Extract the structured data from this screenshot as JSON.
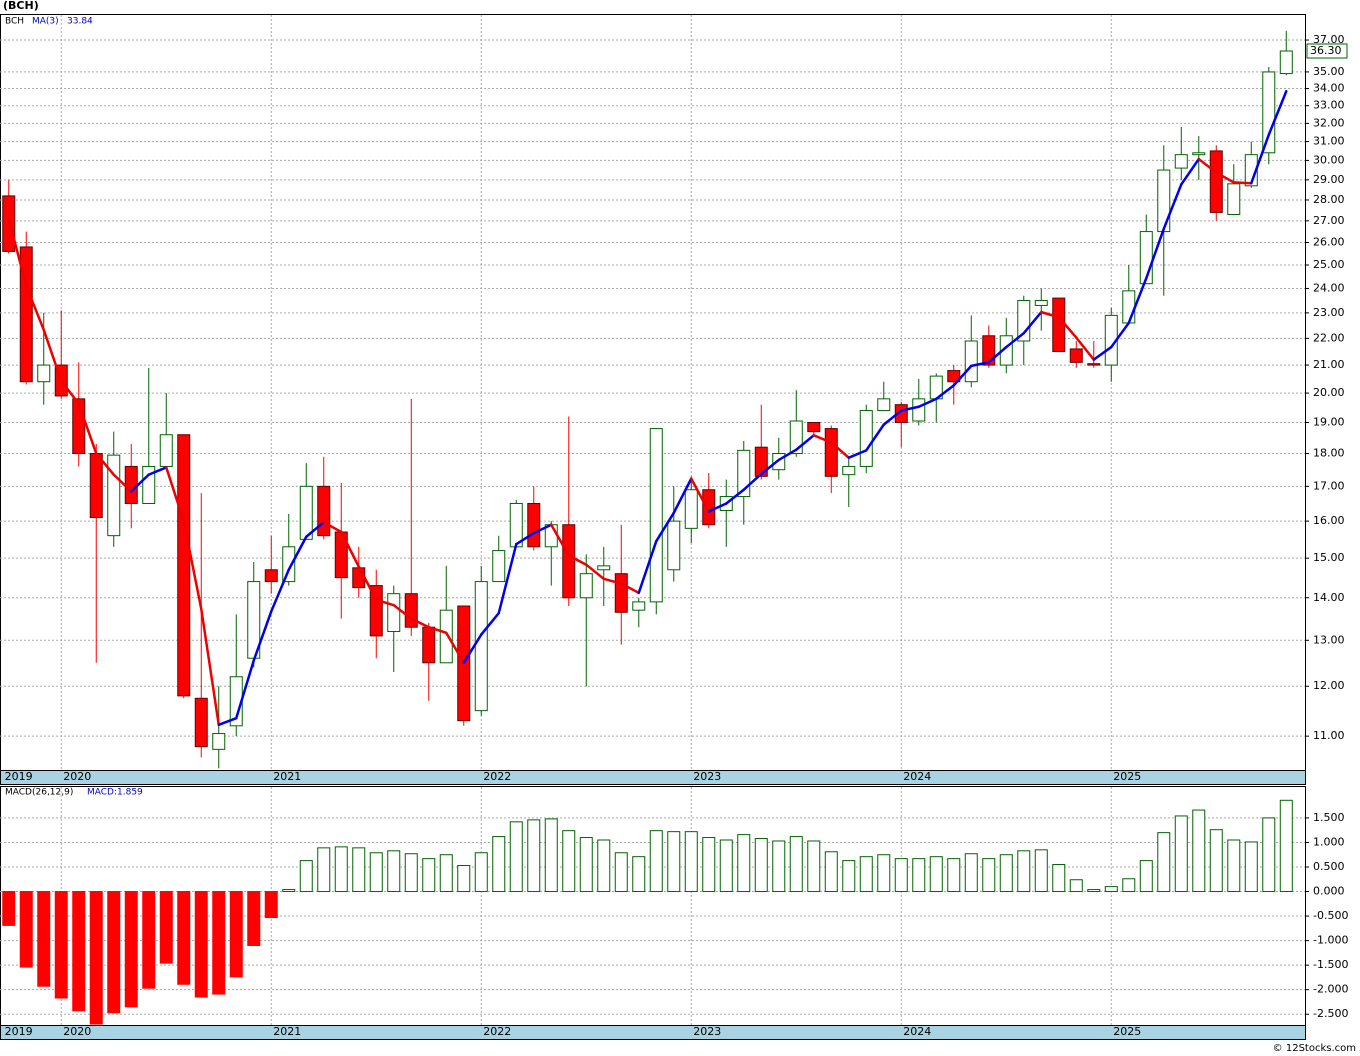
{
  "chart_data": {
    "type": "candlestick",
    "title": "(BCH)",
    "log_scale": true,
    "grid": true,
    "xlim": [
      -0.5,
      74.07
    ],
    "xticks": [
      {
        "value": -0.35,
        "label": "2019"
      },
      {
        "value": 3,
        "label": "2020"
      },
      {
        "value": 15,
        "label": "2021"
      },
      {
        "value": 27,
        "label": "2022"
      },
      {
        "value": 39,
        "label": "2023"
      },
      {
        "value": 51,
        "label": "2024"
      },
      {
        "value": 63,
        "label": "2025"
      }
    ],
    "ylim": [
      10.37,
      38.65
    ],
    "yticks": [
      {
        "value": 11,
        "label": "11.00"
      },
      {
        "value": 12,
        "label": "12.00"
      },
      {
        "value": 13,
        "label": "13.00"
      },
      {
        "value": 14,
        "label": "14.00"
      },
      {
        "value": 15,
        "label": "15.00"
      },
      {
        "value": 16,
        "label": "16.00"
      },
      {
        "value": 17,
        "label": "17.00"
      },
      {
        "value": 18,
        "label": "18.00"
      },
      {
        "value": 19,
        "label": "19.00"
      },
      {
        "value": 20,
        "label": "20.00"
      },
      {
        "value": 21,
        "label": "21.00"
      },
      {
        "value": 22,
        "label": "22.00"
      },
      {
        "value": 23,
        "label": "23.00"
      },
      {
        "value": 24,
        "label": "24.00"
      },
      {
        "value": 25,
        "label": "25.00"
      },
      {
        "value": 26,
        "label": "26.00"
      },
      {
        "value": 27,
        "label": "27.00"
      },
      {
        "value": 28,
        "label": "28.00"
      },
      {
        "value": 29,
        "label": "29.00"
      },
      {
        "value": 30,
        "label": "30.00"
      },
      {
        "value": 31,
        "label": "31.00"
      },
      {
        "value": 32,
        "label": "32.00"
      },
      {
        "value": 33,
        "label": "33.00"
      },
      {
        "value": 34,
        "label": "34.00"
      },
      {
        "value": 35,
        "label": "35.00"
      },
      {
        "value": 37,
        "label": "37.00"
      }
    ],
    "series": [
      {
        "name": "BCH",
        "type": "candlestick",
        "up_color": "#006400",
        "down_color": "#ff0000",
        "open": [
          28.2,
          25.8,
          20.4,
          21.0,
          19.8,
          18.0,
          15.6,
          17.6,
          16.5,
          17.6,
          18.6,
          11.75,
          10.75,
          11.2,
          12.6,
          14.7,
          14.4,
          15.5,
          17.0,
          15.7,
          14.75,
          14.3,
          13.2,
          14.1,
          13.3,
          12.5,
          13.8,
          11.5,
          14.4,
          15.3,
          16.5,
          15.3,
          15.9,
          14.0,
          14.7,
          14.6,
          13.7,
          13.9,
          14.7,
          15.8,
          16.9,
          16.3,
          16.7,
          18.2,
          17.5,
          18.0,
          19.0,
          18.8,
          17.35,
          17.6,
          19.4,
          19.6,
          19.05,
          19.8,
          20.8,
          20.4,
          22.1,
          21.0,
          21.9,
          23.3,
          23.6,
          21.6,
          21.05,
          21.0,
          22.6,
          24.2,
          26.5,
          29.6,
          30.3,
          30.5,
          27.3,
          28.7,
          30.4,
          34.9
        ],
        "high": [
          29.0,
          26.5,
          23.0,
          23.1,
          21.1,
          18.3,
          18.7,
          18.3,
          20.9,
          20.0,
          18.6,
          16.8,
          12.0,
          13.6,
          14.9,
          15.6,
          16.2,
          17.7,
          17.9,
          17.1,
          15.3,
          14.7,
          14.3,
          19.8,
          13.4,
          14.8,
          13.8,
          14.8,
          15.6,
          16.6,
          17.0,
          16.0,
          19.2,
          15.1,
          15.3,
          15.9,
          14.0,
          18.8,
          17.0,
          17.3,
          17.4,
          17.2,
          18.4,
          19.6,
          18.5,
          20.1,
          19.0,
          18.9,
          17.9,
          19.6,
          20.4,
          19.7,
          20.5,
          20.7,
          21.0,
          22.9,
          22.5,
          22.8,
          23.7,
          24.0,
          23.6,
          21.9,
          21.9,
          23.2,
          25.0,
          27.3,
          30.8,
          31.8,
          31.3,
          30.8,
          29.8,
          31.0,
          35.3,
          37.6
        ],
        "low": [
          25.5,
          20.3,
          19.6,
          19.8,
          17.6,
          12.5,
          15.3,
          15.8,
          16.5,
          17.6,
          11.75,
          10.6,
          10.4,
          11.0,
          12.4,
          14.1,
          14.3,
          15.5,
          15.5,
          13.5,
          14.0,
          12.6,
          12.3,
          13.1,
          11.7,
          12.5,
          11.2,
          11.4,
          14.4,
          15.3,
          15.2,
          14.3,
          13.8,
          12.0,
          13.8,
          12.9,
          13.3,
          13.6,
          14.4,
          15.4,
          15.8,
          15.3,
          15.9,
          17.2,
          17.2,
          17.9,
          18.6,
          16.8,
          16.4,
          17.4,
          19.4,
          18.2,
          18.9,
          19.0,
          19.6,
          20.2,
          20.9,
          20.7,
          21.0,
          22.3,
          21.5,
          20.9,
          20.9,
          20.4,
          22.6,
          24.2,
          23.7,
          29.0,
          29.0,
          27.0,
          27.3,
          28.6,
          29.8,
          34.8
        ],
        "close": [
          25.6,
          20.4,
          21.0,
          19.9,
          18.0,
          16.1,
          17.95,
          16.5,
          17.6,
          18.6,
          11.8,
          10.8,
          11.05,
          12.2,
          14.4,
          14.4,
          15.3,
          17.0,
          15.6,
          14.5,
          14.25,
          13.1,
          14.1,
          13.3,
          12.5,
          13.7,
          11.3,
          14.4,
          15.2,
          16.5,
          15.3,
          15.9,
          14.0,
          14.6,
          14.8,
          13.65,
          13.9,
          18.8,
          16.0,
          16.9,
          15.9,
          16.7,
          18.1,
          17.3,
          18.0,
          19.05,
          18.7,
          17.3,
          17.6,
          19.4,
          19.8,
          19.0,
          19.8,
          20.6,
          20.4,
          21.9,
          21.0,
          22.1,
          23.5,
          23.5,
          21.5,
          21.1,
          21.0,
          22.9,
          23.9,
          26.5,
          29.5,
          30.3,
          30.4,
          27.4,
          28.8,
          30.3,
          35.0,
          36.3
        ],
        "last_label": "36.30"
      },
      {
        "name": "MA(3)",
        "type": "line",
        "up_color": "#0000ee",
        "down_color": "#ee0000",
        "values": [
          27.1,
          24.1,
          22.33,
          20.43,
          19.63,
          18.0,
          17.35,
          16.85,
          17.35,
          17.57,
          16.0,
          13.73,
          11.22,
          11.35,
          12.55,
          13.67,
          14.7,
          15.57,
          15.97,
          15.7,
          14.78,
          13.95,
          13.82,
          13.5,
          13.3,
          13.17,
          12.5,
          13.13,
          13.63,
          15.37,
          15.67,
          15.9,
          15.07,
          14.83,
          14.47,
          14.35,
          14.12,
          15.45,
          16.23,
          17.23,
          16.27,
          16.5,
          16.9,
          17.37,
          17.8,
          18.12,
          18.58,
          18.35,
          17.87,
          18.1,
          18.93,
          19.4,
          19.53,
          19.8,
          20.27,
          20.97,
          21.1,
          21.67,
          22.2,
          23.03,
          22.83,
          22.03,
          21.2,
          21.67,
          22.6,
          24.43,
          26.63,
          28.77,
          30.07,
          29.37,
          28.87,
          28.83,
          31.37,
          33.84
        ],
        "last_label": "33.84"
      }
    ],
    "macd": {
      "name": "MACD(26,12,9)",
      "label": "MACD:1.859",
      "up_color": "#006400",
      "down_color": "#ff0000",
      "ylim": [
        -2.72,
        2.13
      ],
      "yticks": [
        {
          "value": 1.5,
          "label": "1.500"
        },
        {
          "value": 1,
          "label": "1.000"
        },
        {
          "value": 0.5,
          "label": "0.500"
        },
        {
          "value": 0,
          "label": "0.000"
        },
        {
          "value": -0.5,
          "label": "-0.500"
        },
        {
          "value": -1,
          "label": "-1.000"
        },
        {
          "value": -1.5,
          "label": "-1.500"
        },
        {
          "value": -2,
          "label": "-2.000"
        },
        {
          "value": -2.5,
          "label": "-2.500"
        }
      ],
      "values": [
        -0.69,
        -1.54,
        -1.93,
        -2.17,
        -2.43,
        -2.7,
        -2.47,
        -2.35,
        -1.97,
        -1.46,
        -1.89,
        -2.15,
        -2.09,
        -1.74,
        -1.1,
        -0.53,
        0.04,
        0.63,
        0.89,
        0.91,
        0.89,
        0.79,
        0.83,
        0.77,
        0.67,
        0.75,
        0.53,
        0.79,
        1.12,
        1.42,
        1.46,
        1.48,
        1.24,
        1.1,
        1.05,
        0.79,
        0.71,
        1.24,
        1.22,
        1.22,
        1.1,
        1.05,
        1.16,
        1.08,
        1.03,
        1.12,
        1.03,
        0.81,
        0.63,
        0.71,
        0.75,
        0.67,
        0.67,
        0.71,
        0.67,
        0.77,
        0.67,
        0.75,
        0.83,
        0.85,
        0.55,
        0.24,
        0.04,
        0.1,
        0.26,
        0.63,
        1.2,
        1.54,
        1.66,
        1.26,
        1.05,
        1.01,
        1.5,
        1.859
      ]
    },
    "footer": "© 12Stocks.com"
  }
}
